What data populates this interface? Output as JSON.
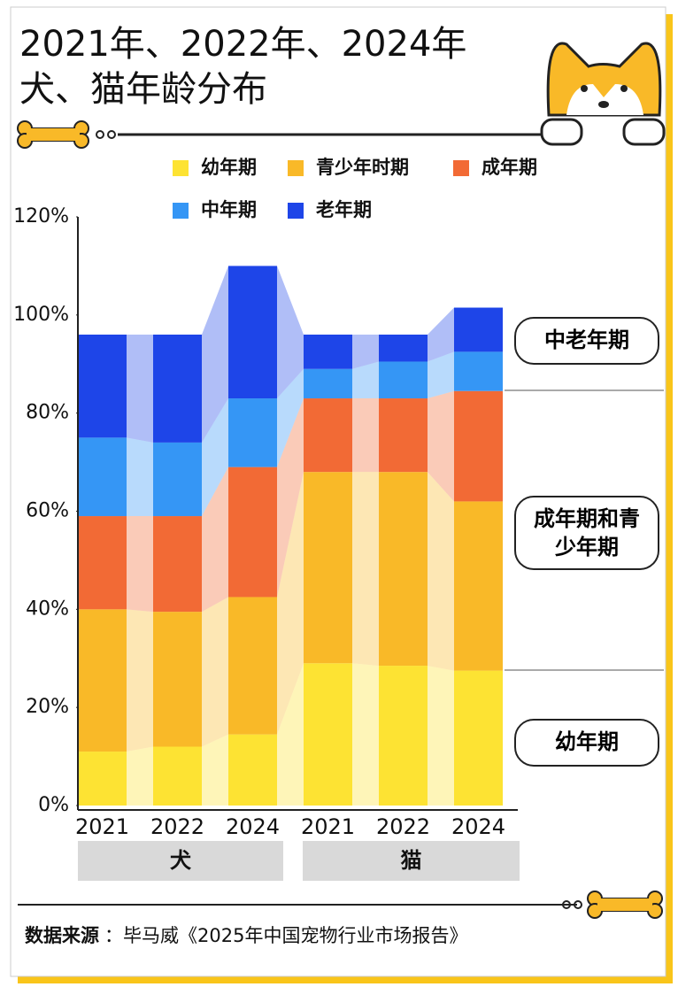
{
  "chart_data": {
    "type": "stacked_bar",
    "title_lines": [
      "2021年、2022年、2024年",
      "犬、猫年龄分布"
    ],
    "categories": [
      "2021",
      "2022",
      "2024",
      "2021",
      "2022",
      "2024"
    ],
    "groups": [
      "犬",
      "猫"
    ],
    "series": [
      {
        "name": "幼年期",
        "color": "#fde333",
        "values": [
          11,
          12,
          14.5,
          29,
          28.5,
          27.5
        ]
      },
      {
        "name": "青少年时期",
        "color": "#f9b928",
        "values": [
          29,
          27.5,
          28,
          39,
          39.5,
          34.5
        ]
      },
      {
        "name": "成年期",
        "color": "#f26a35",
        "values": [
          19,
          19.5,
          26.5,
          15,
          15,
          22.5
        ]
      },
      {
        "name": "中年期",
        "color": "#3596f5",
        "values": [
          16,
          15,
          14,
          6,
          7.5,
          8
        ]
      },
      {
        "name": "老年期",
        "color": "#1e45e8",
        "values": [
          21,
          22,
          27,
          7,
          5.5,
          9
        ]
      }
    ],
    "ylim": [
      0,
      120
    ],
    "yticks": [
      {
        "value": 0,
        "label": "0%"
      },
      {
        "value": 20,
        "label": "20%"
      },
      {
        "value": 40,
        "label": "40%"
      },
      {
        "value": 60,
        "label": "60%"
      },
      {
        "value": 80,
        "label": "80%"
      },
      {
        "value": 100,
        "label": "100%"
      },
      {
        "value": 120,
        "label": "120%"
      }
    ],
    "annotations": [
      "中老年期",
      "成年期和青少年期",
      "幼年期"
    ],
    "source_label": "数据来源",
    "source_text": "：毕马威《2025年中国宠物行业市场报告》"
  }
}
